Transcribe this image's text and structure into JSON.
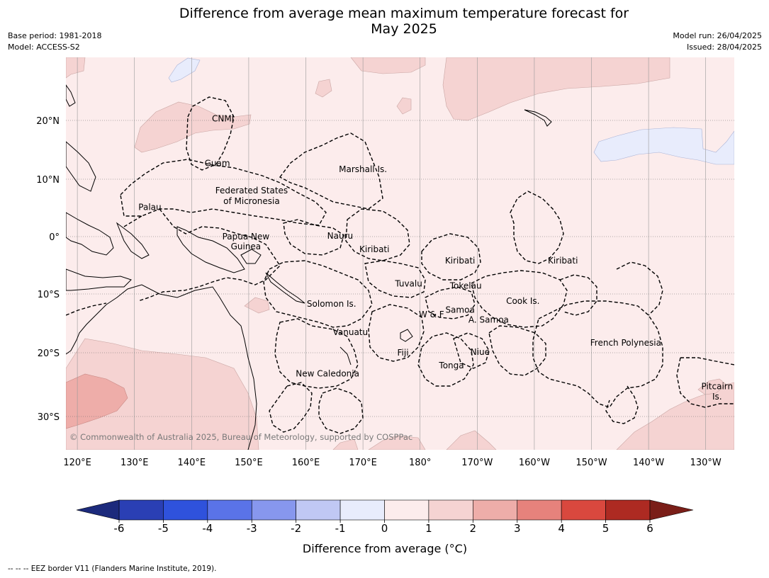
{
  "title_line1": "Difference from average mean maximum temperature forecast for",
  "title_line2": "May 2025",
  "meta_left": [
    "Base period: 1981-2018",
    "Model: ACCESS-S2"
  ],
  "meta_right": [
    "Model run: 26/04/2025",
    "Issued: 28/04/2025"
  ],
  "lon_labels": [
    "120°E",
    "130°E",
    "140°E",
    "150°E",
    "160°E",
    "170°E",
    "180°",
    "170°W",
    "160°W",
    "150°W",
    "140°W",
    "130°W"
  ],
  "lat_labels": [
    "20°N",
    "10°N",
    "0°",
    "10°S",
    "20°S",
    "30°S"
  ],
  "regions": [
    {
      "name": "CNMI",
      "lon": 145.5,
      "lat": 20.3
    },
    {
      "name": "Guam",
      "lon": 144.5,
      "lat": 12.7
    },
    {
      "name": "Marshall Is.",
      "lon": 170,
      "lat": 11.7
    },
    {
      "name": "Federated States",
      "lon": 150.5,
      "lat": 8.0
    },
    {
      "name": "of Micronesia",
      "lon": 150.5,
      "lat": 6.2
    },
    {
      "name": "Palau",
      "lon": 132.7,
      "lat": 5.1
    },
    {
      "name": "Papua New",
      "lon": 149.5,
      "lat": 0.0
    },
    {
      "name": "Guinea",
      "lon": 149.5,
      "lat": -1.7
    },
    {
      "name": "Nauru",
      "lon": 166,
      "lat": 0.1
    },
    {
      "name": "Kiribati",
      "lon": 172,
      "lat": -2.2
    },
    {
      "name": "Kiribati",
      "lon": 187,
      "lat": -4.2
    },
    {
      "name": "Kiribati",
      "lon": 205,
      "lat": -4.2
    },
    {
      "name": "Tuvalu",
      "lon": 178,
      "lat": -8.2
    },
    {
      "name": "Tokelau",
      "lon": 188,
      "lat": -8.6
    },
    {
      "name": "Cook Is.",
      "lon": 198,
      "lat": -11.2
    },
    {
      "name": "Solomon Is.",
      "lon": 164.5,
      "lat": -11.7
    },
    {
      "name": "Samoa",
      "lon": 187,
      "lat": -12.7
    },
    {
      "name": "W & F",
      "lon": 182,
      "lat": -13.5
    },
    {
      "name": "A. Samoa",
      "lon": 192,
      "lat": -14.4
    },
    {
      "name": "Vanuatu",
      "lon": 167.8,
      "lat": -16.5
    },
    {
      "name": "Fiji",
      "lon": 177,
      "lat": -20.0
    },
    {
      "name": "Niue",
      "lon": 190.5,
      "lat": -19.9
    },
    {
      "name": "Tonga",
      "lon": 185.5,
      "lat": -22.0
    },
    {
      "name": "French Polynesia",
      "lon": 216,
      "lat": -18.3
    },
    {
      "name": "New Caledonia",
      "lon": 163.8,
      "lat": -23.3
    },
    {
      "name": "Pitcairn",
      "lon": 232,
      "lat": -25.3
    },
    {
      "name": "Is.",
      "lon": 232,
      "lat": -26.9
    }
  ],
  "copyright": "© Commonwealth of Australia 2025, Bureau of Meteorology, supported by COSPPac",
  "colorbar": {
    "label": "Difference from average (°C)",
    "ticks": [
      "-6",
      "-5",
      "-4",
      "-3",
      "-2",
      "-1",
      "0",
      "1",
      "2",
      "3",
      "4",
      "5",
      "6"
    ],
    "colors": [
      "#2a3fb4",
      "#2f52dc",
      "#5a73e8",
      "#8797ee",
      "#c0c8f4",
      "#e8ecfc",
      "#fcecec",
      "#f5d3d2",
      "#eeada9",
      "#e6827c",
      "#d9483e",
      "#ad2a22"
    ],
    "under_color": "#1c2a7c",
    "over_color": "#7a1e18"
  },
  "footer": "--  --  -- EEZ border V11 (Flanders Marine Institute, 2019)."
}
